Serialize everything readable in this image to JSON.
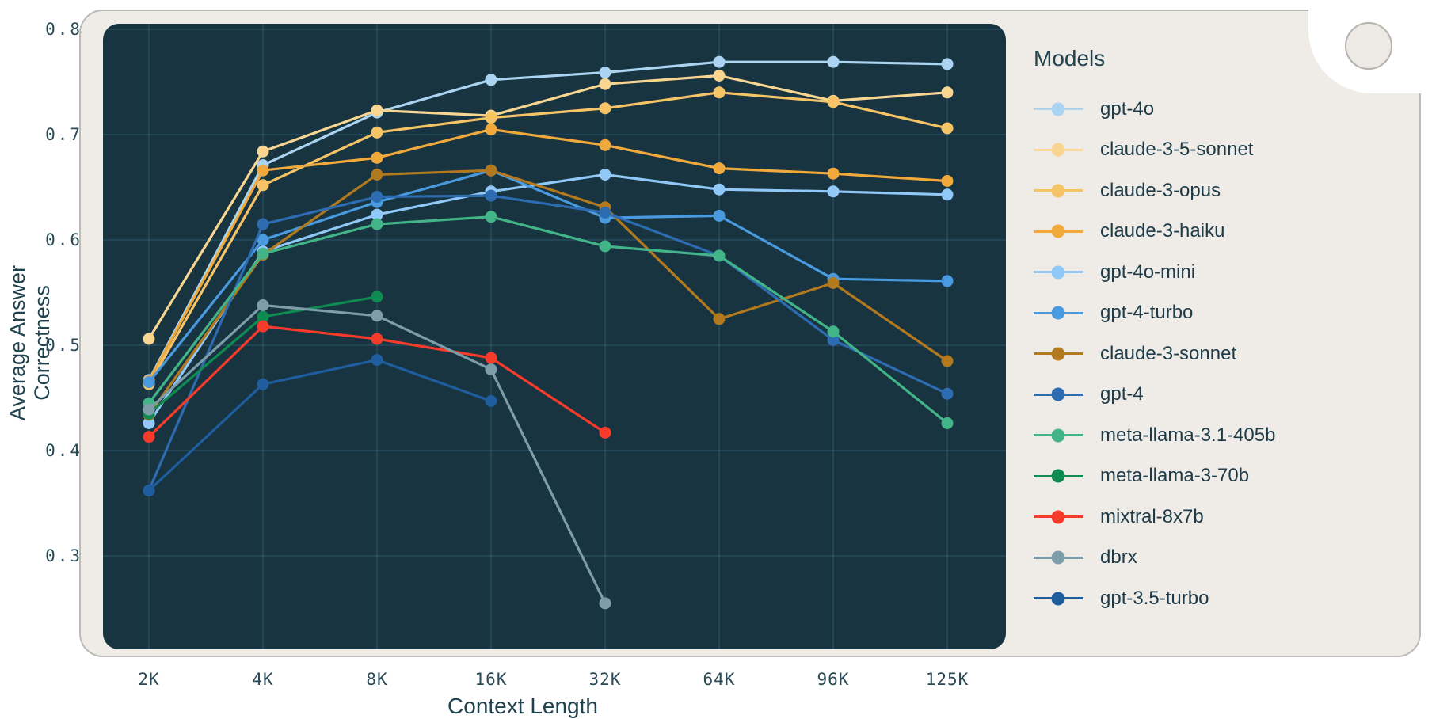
{
  "chart_data": {
    "type": "line",
    "title": "",
    "xlabel": "Context Length",
    "ylabel": "Average Answer Correctness",
    "legend_title": "Models",
    "legend_position": "right",
    "grid": true,
    "categories": [
      "2K",
      "4K",
      "8K",
      "16K",
      "32K",
      "64K",
      "96K",
      "125K"
    ],
    "y_ticks": [
      "0.3",
      "0.4",
      "0.5",
      "0.6",
      "0.7",
      "0.8"
    ],
    "ylim": [
      0.21,
      0.805
    ],
    "series": [
      {
        "name": "gpt-4o",
        "color": "#abd4f2",
        "values": [
          0.467,
          0.671,
          0.721,
          0.752,
          0.759,
          0.769,
          0.769,
          0.767
        ]
      },
      {
        "name": "claude-3-5-sonnet",
        "color": "#f8d692",
        "values": [
          0.506,
          0.684,
          0.723,
          0.718,
          0.748,
          0.756,
          0.732,
          0.74
        ]
      },
      {
        "name": "claude-3-opus",
        "color": "#f6c466",
        "values": [
          0.463,
          0.652,
          0.702,
          0.716,
          0.725,
          0.74,
          0.731,
          0.706
        ]
      },
      {
        "name": "claude-3-haiku",
        "color": "#f2a93b",
        "values": [
          0.466,
          0.666,
          0.678,
          0.705,
          0.69,
          0.668,
          0.663,
          0.656
        ]
      },
      {
        "name": "gpt-4o-mini",
        "color": "#90c8f8",
        "values": [
          0.426,
          0.589,
          0.624,
          0.646,
          0.662,
          0.648,
          0.646,
          0.643
        ]
      },
      {
        "name": "gpt-4-turbo",
        "color": "#4a9ae0",
        "values": [
          0.465,
          0.6,
          0.636,
          0.666,
          0.621,
          0.623,
          0.563,
          0.561
        ]
      },
      {
        "name": "claude-3-sonnet",
        "color": "#b2791e",
        "values": [
          0.434,
          0.586,
          0.662,
          0.666,
          0.631,
          0.525,
          0.559,
          0.485
        ]
      },
      {
        "name": "gpt-4",
        "color": "#2e6cb2",
        "values": [
          0.362,
          0.615,
          0.641,
          0.642,
          0.626,
          0.585,
          0.505,
          0.454
        ]
      },
      {
        "name": "meta-llama-3.1-405b",
        "color": "#43b487",
        "values": [
          0.445,
          0.587,
          0.615,
          0.622,
          0.594,
          0.585,
          0.513,
          0.426
        ]
      },
      {
        "name": "meta-llama-3-70b",
        "color": "#0f8a50",
        "values": [
          0.435,
          0.527,
          0.546,
          null,
          null,
          null,
          null,
          null
        ]
      },
      {
        "name": "mixtral-8x7b",
        "color": "#f63b2b",
        "values": [
          0.413,
          0.518,
          0.506,
          0.488,
          0.417,
          null,
          null,
          null
        ]
      },
      {
        "name": "dbrx",
        "color": "#7e9dab",
        "values": [
          0.439,
          0.538,
          0.528,
          0.477,
          0.255,
          null,
          null,
          null
        ]
      },
      {
        "name": "gpt-3.5-turbo",
        "color": "#1e5d9e",
        "values": [
          0.362,
          0.463,
          0.486,
          0.447,
          null,
          null,
          null,
          null
        ]
      }
    ],
    "plot_colors": {
      "panel_background": "#173440",
      "card_background": "#efece7",
      "grid_line": "rgba(96,165,194,0.22)",
      "text": "#21424f"
    }
  }
}
